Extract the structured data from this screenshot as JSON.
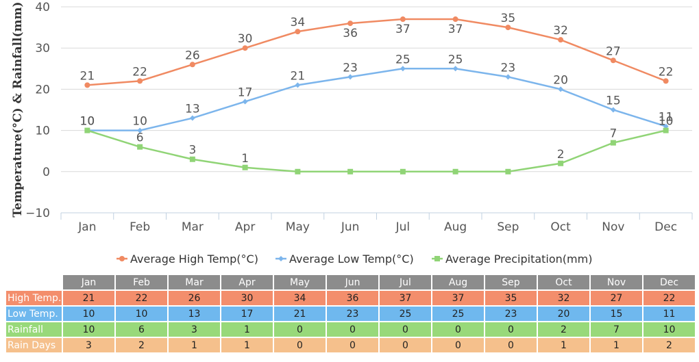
{
  "chart_data": {
    "type": "line",
    "ylabel": "Temperature(°C) & Rainfall(mm)",
    "ylim": [
      -10,
      40
    ],
    "yticks": [
      -10,
      0,
      10,
      20,
      30,
      40
    ],
    "grid": "horizontal",
    "legend_position": "bottom",
    "categories": [
      "Jan",
      "Feb",
      "Mar",
      "Apr",
      "May",
      "Jun",
      "Jul",
      "Aug",
      "Sep",
      "Oct",
      "Nov",
      "Dec"
    ],
    "series": [
      {
        "name": "Average High Temp(°C)",
        "color": "#f08a62",
        "marker": "circle",
        "values": [
          21,
          22,
          26,
          30,
          34,
          36,
          37,
          37,
          35,
          32,
          27,
          22
        ]
      },
      {
        "name": "Average Low Temp(°C)",
        "color": "#7cb5ec",
        "marker": "diamond",
        "values": [
          10,
          10,
          13,
          17,
          21,
          23,
          25,
          25,
          23,
          20,
          15,
          11
        ]
      },
      {
        "name": "Average Precipitation(mm)",
        "color": "#90d476",
        "marker": "square",
        "values": [
          10,
          6,
          3,
          1,
          0,
          0,
          0,
          0,
          0,
          2,
          7,
          10
        ]
      }
    ]
  },
  "table": {
    "months": [
      "Jan",
      "Feb",
      "Mar",
      "Apr",
      "May",
      "Jun",
      "Jul",
      "Aug",
      "Sep",
      "Oct",
      "Nov",
      "Dec"
    ],
    "rows": [
      {
        "label": "High Temp.",
        "values": [
          "21",
          "22",
          "26",
          "30",
          "34",
          "36",
          "37",
          "37",
          "35",
          "32",
          "27",
          "22"
        ]
      },
      {
        "label": "Low Temp.",
        "values": [
          "10",
          "10",
          "13",
          "17",
          "21",
          "23",
          "25",
          "25",
          "23",
          "20",
          "15",
          "11"
        ]
      },
      {
        "label": "Rainfall",
        "values": [
          "10",
          "6",
          "3",
          "1",
          "0",
          "0",
          "0",
          "0",
          "0",
          "2",
          "7",
          "10"
        ]
      },
      {
        "label": "Rain Days",
        "values": [
          "3",
          "2",
          "1",
          "1",
          "0",
          "0",
          "0",
          "0",
          "0",
          "1",
          "1",
          "2"
        ]
      }
    ]
  }
}
